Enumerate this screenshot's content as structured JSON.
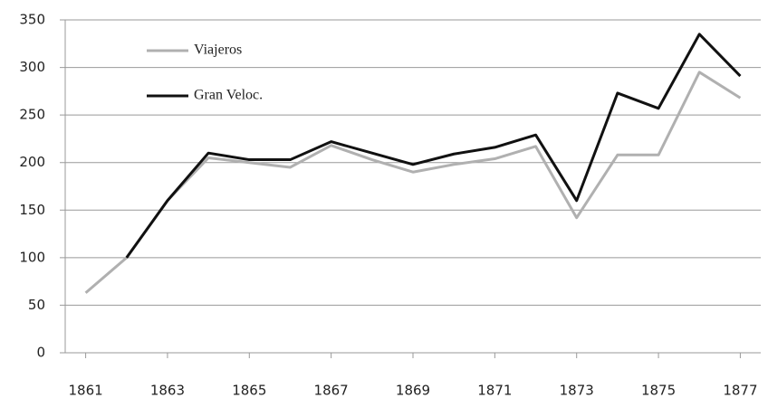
{
  "chart_data": {
    "type": "line",
    "x": [
      1861,
      1862,
      1863,
      1864,
      1865,
      1866,
      1867,
      1868,
      1869,
      1870,
      1871,
      1872,
      1873,
      1874,
      1875,
      1876,
      1877
    ],
    "series": [
      {
        "name": "Viajeros",
        "color": "#b0b0b0",
        "values": [
          63,
          100,
          160,
          205,
          200,
          195,
          218,
          203,
          190,
          198,
          204,
          217,
          142,
          208,
          208,
          295,
          268
        ]
      },
      {
        "name": "Gran Veloc.",
        "color": "#111111",
        "values": [
          null,
          100,
          160,
          210,
          203,
          203,
          222,
          210,
          198,
          209,
          216,
          229,
          160,
          273,
          257,
          335,
          291
        ]
      }
    ],
    "xlim": [
      1860.5,
      1877.5
    ],
    "xticks": [
      1861,
      1863,
      1865,
      1867,
      1869,
      1871,
      1873,
      1875,
      1877
    ],
    "ylim": [
      0,
      350
    ],
    "yticks": [
      0,
      50,
      100,
      150,
      200,
      250,
      300,
      350
    ],
    "grid": true,
    "legend": "top-left"
  }
}
